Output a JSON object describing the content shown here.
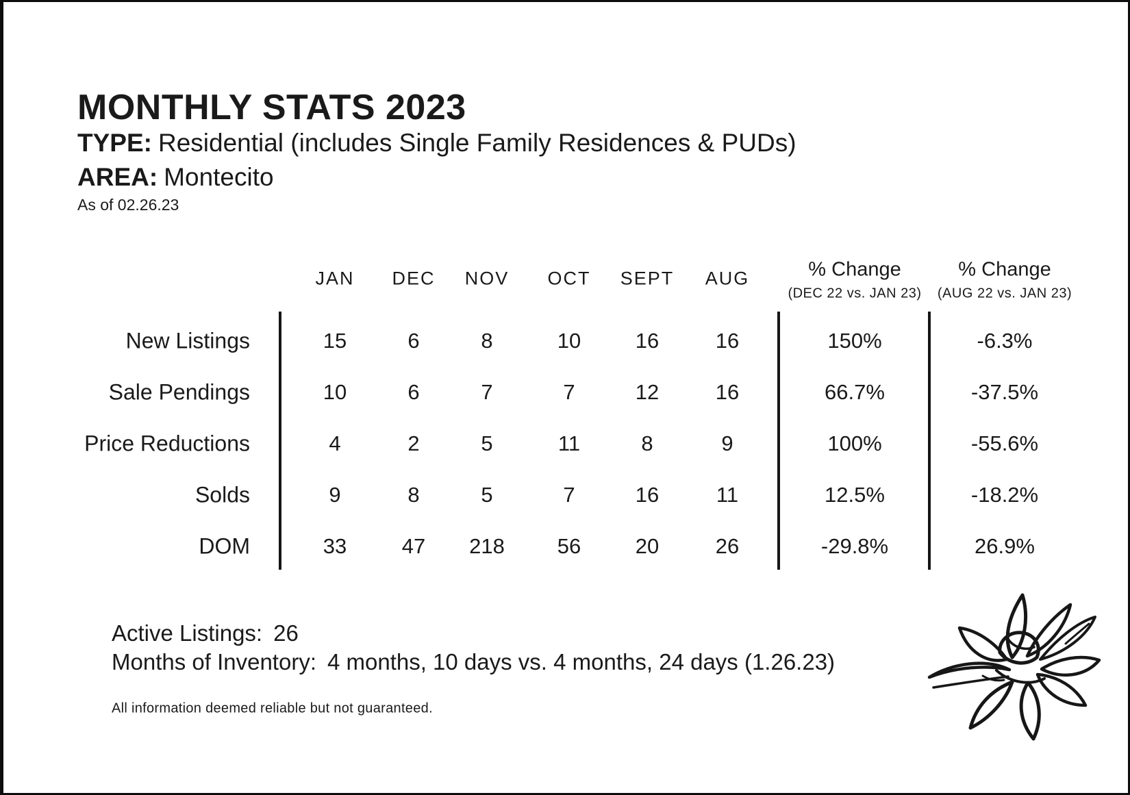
{
  "header": {
    "title": "MONTHLY STATS 2023",
    "type_label": "TYPE:",
    "type_value": "Residential (includes Single Family Residences & PUDs)",
    "area_label": "AREA:",
    "area_value": "Montecito",
    "as_of": "As of 02.26.23"
  },
  "table": {
    "month_columns": [
      "JAN",
      "DEC",
      "NOV",
      "OCT",
      "SEPT",
      "AUG"
    ],
    "pct_columns": [
      {
        "title": "% Change",
        "subtitle": "(DEC 22 vs. JAN 23)"
      },
      {
        "title": "% Change",
        "subtitle": "(AUG 22 vs. JAN 23)"
      }
    ],
    "rows": [
      {
        "label": "New Listings",
        "values": [
          "15",
          "6",
          "8",
          "10",
          "16",
          "16"
        ],
        "pct": [
          "150%",
          "-6.3%"
        ]
      },
      {
        "label": "Sale Pendings",
        "values": [
          "10",
          "6",
          "7",
          "7",
          "12",
          "16"
        ],
        "pct": [
          "66.7%",
          "-37.5%"
        ]
      },
      {
        "label": "Price Reductions",
        "values": [
          "4",
          "2",
          "5",
          "11",
          "8",
          "9"
        ],
        "pct": [
          "100%",
          "-55.6%"
        ]
      },
      {
        "label": "Solds",
        "values": [
          "9",
          "8",
          "5",
          "7",
          "16",
          "11"
        ],
        "pct": [
          "12.5%",
          "-18.2%"
        ]
      },
      {
        "label": "DOM",
        "values": [
          "33",
          "47",
          "218",
          "56",
          "20",
          "26"
        ],
        "pct": [
          "-29.8%",
          "26.9%"
        ]
      }
    ]
  },
  "footer": {
    "active_listings_label": "Active Listings:",
    "active_listings_value": "26",
    "inventory_label": "Months of Inventory:",
    "inventory_value": "4 months, 10 days vs. 4 months, 24 days (1.26.23)",
    "disclaimer": "All information deemed reliable but not guaranteed."
  },
  "colors": {
    "ink": "#1a1a1a",
    "background": "#ffffff"
  },
  "icons": {
    "flower_logo": "magnolia-line-art"
  }
}
